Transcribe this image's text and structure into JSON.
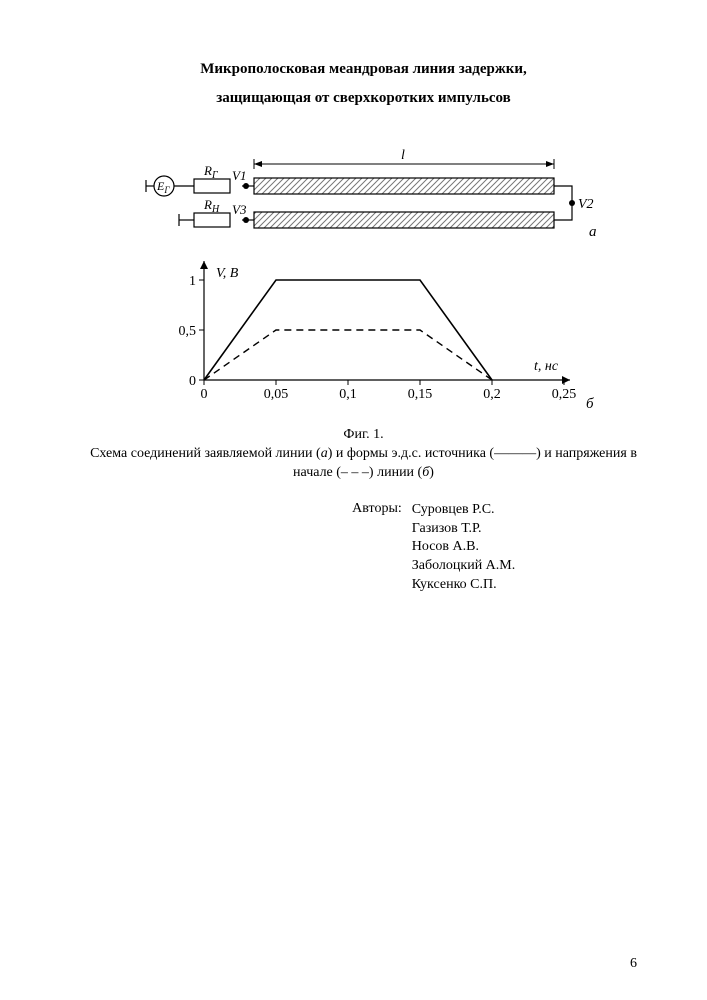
{
  "title_line1": "Микрополосковая меандровая линия задержки,",
  "title_line2": "защищающая от сверхкоротких импульсов",
  "page_number": "6",
  "caption_fig": "Фиг. 1.",
  "caption_text_pre": "Схема соединений заявляемой линии (",
  "caption_a": "а",
  "caption_text_mid1": ") и формы э.д.с. источника (———) и напряжения в начале (–  –  –) линии (",
  "caption_b": "б",
  "caption_text_end": ")",
  "authors_label": "Авторы:",
  "authors": [
    "Суровцев Р.С.",
    "Газизов Т.Р.",
    "Носов А.В.",
    "Заболоцкий А.М.",
    "Куксенко С.П."
  ],
  "schematic": {
    "label_a": "а",
    "label_b": "б",
    "label_Eg": "E",
    "label_Eg_sub": "Г",
    "label_Rg": "R",
    "label_Rg_sub": "Г",
    "label_Rn": "R",
    "label_Rn_sub": "Н",
    "label_V1": "V1",
    "label_V2": "V2",
    "label_V3": "V3",
    "label_l": "l",
    "hatch_color": "#777777",
    "line_color": "#000000",
    "stroke_width": 1.2,
    "arrow_width": 1.0
  },
  "chart": {
    "type": "line",
    "x_label": "t, нс",
    "y_label": "V, В",
    "x_ticks": [
      "0",
      "0,05",
      "0,1",
      "0,15",
      "0,2",
      "0,25"
    ],
    "y_ticks": [
      "0",
      "0,5",
      "1"
    ],
    "xlim": [
      0,
      0.25
    ],
    "ylim": [
      0,
      1.15
    ],
    "series_solid": {
      "points": [
        [
          0,
          0
        ],
        [
          0.05,
          1.0
        ],
        [
          0.15,
          1.0
        ],
        [
          0.2,
          0
        ]
      ],
      "color": "#000000",
      "width": 1.6,
      "dash": null
    },
    "series_dashed": {
      "points": [
        [
          0,
          0
        ],
        [
          0.05,
          0.5
        ],
        [
          0.15,
          0.5
        ],
        [
          0.2,
          0
        ]
      ],
      "color": "#000000",
      "width": 1.4,
      "dash": "7 5"
    },
    "axis_color": "#000000",
    "axis_width": 1.2,
    "tick_len": 5,
    "font_size": 14
  }
}
